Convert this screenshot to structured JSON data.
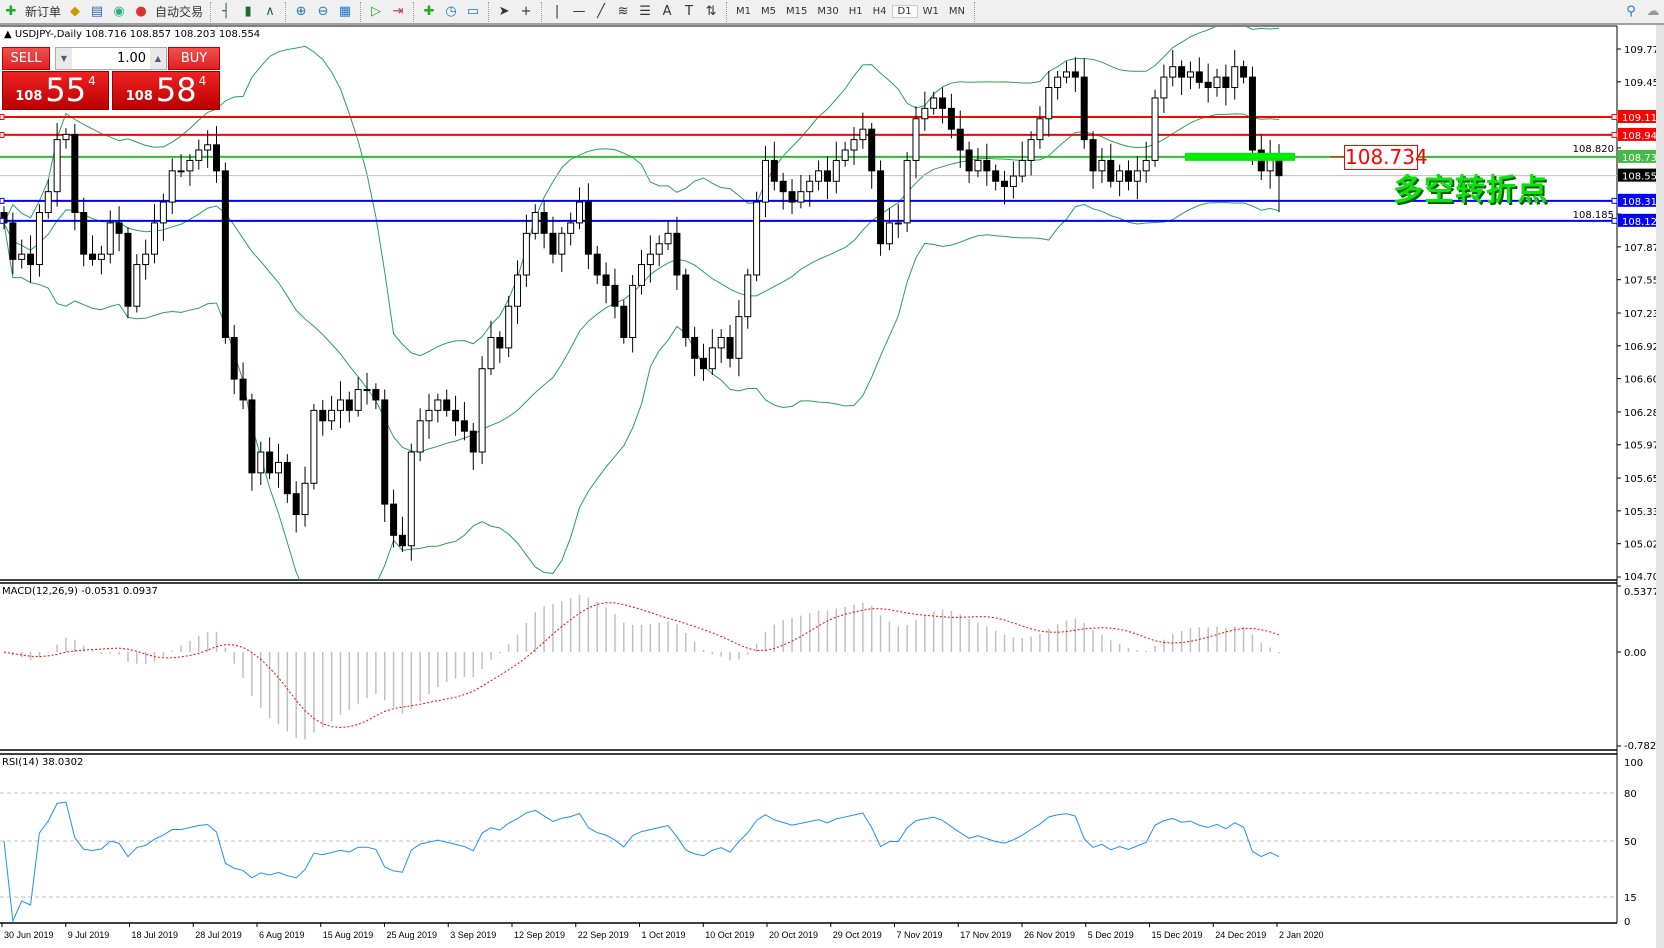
{
  "toolbar": {
    "new_order": "新订单",
    "auto_trading": "自动交易",
    "icons": [
      "new-order-icon",
      "metaquotes-icon",
      "market-watch-icon",
      "signals-icon",
      "auto-trading-icon",
      "bar-chart-icon",
      "candlestick-icon",
      "line-chart-icon",
      "zoom-in-icon",
      "zoom-out-icon",
      "tile-windows-icon",
      "autoscroll-icon",
      "chart-shift-icon",
      "indicators-icon",
      "periods-icon",
      "templates-icon",
      "cursor-icon",
      "crosshair-icon",
      "vertical-line-icon",
      "horizontal-line-icon",
      "trendline-icon",
      "fibonacci-icon",
      "fibo-fan-icon",
      "text-icon",
      "text-label-icon",
      "arrows-icon",
      "search-icon",
      "community-icon"
    ],
    "timeframes": [
      "M1",
      "M5",
      "M15",
      "M30",
      "H1",
      "H4",
      "D1",
      "W1",
      "MN"
    ],
    "active_timeframe": "D1"
  },
  "header": {
    "symbol": "USDJPY-,Daily",
    "ohlc": "108.716 108.857 108.203 108.554"
  },
  "one_click": {
    "sell_label": "SELL",
    "buy_label": "BUY",
    "lot": "1.00",
    "sell_small": "108",
    "sell_big": "55",
    "sell_tiny": "4",
    "buy_small": "108",
    "buy_big": "58",
    "buy_tiny": "4"
  },
  "annotation": {
    "price_tag": "108.734",
    "text": "多空转折点",
    "bar_color": "#00ee00"
  },
  "macd": {
    "label": "MACD(12,26,9) -0.0531 0.0937",
    "axis": [
      "0.5377",
      "0.00",
      "-0.7823"
    ],
    "range": [
      -0.7823,
      0.5377
    ]
  },
  "rsi": {
    "label": "RSI(14) 38.0302",
    "axis": [
      "100",
      "80",
      "50",
      "15",
      "0"
    ],
    "levels": [
      80,
      50,
      15
    ]
  },
  "chart_data": {
    "type": "candlestick",
    "symbol": "USDJPY",
    "timeframe": "Daily",
    "ylim": [
      104.7,
      109.77
    ],
    "price_ticks": [
      "109.770",
      "109.455",
      "108.820",
      "108.185",
      "107.870",
      "107.555",
      "107.235",
      "106.920",
      "106.605",
      "106.285",
      "105.970",
      "105.650",
      "105.335",
      "105.020",
      "104.700"
    ],
    "last_bar": {
      "open": 108.716,
      "high": 108.857,
      "low": 108.203,
      "close": 108.554
    },
    "close": [
      108.1,
      107.75,
      107.8,
      107.7,
      108.2,
      108.4,
      108.9,
      108.95,
      108.2,
      107.8,
      107.75,
      107.8,
      108.1,
      108.0,
      107.3,
      107.7,
      107.8,
      108.1,
      108.3,
      108.6,
      108.6,
      108.7,
      108.8,
      108.85,
      108.6,
      107.0,
      106.6,
      106.4,
      105.7,
      105.9,
      105.7,
      105.8,
      105.5,
      105.3,
      105.6,
      106.3,
      106.2,
      106.3,
      106.4,
      106.3,
      106.5,
      106.5,
      106.4,
      105.4,
      105.1,
      105.0,
      105.9,
      106.2,
      106.3,
      106.4,
      106.3,
      106.2,
      106.1,
      105.9,
      106.7,
      107.0,
      106.9,
      107.3,
      107.6,
      108.0,
      108.2,
      108.0,
      107.8,
      108.0,
      108.1,
      108.3,
      107.8,
      107.6,
      107.5,
      107.3,
      107.0,
      107.5,
      107.7,
      107.8,
      107.9,
      108.0,
      107.6,
      107.0,
      106.8,
      106.7,
      106.9,
      107.0,
      106.8,
      107.2,
      107.6,
      108.3,
      108.7,
      108.5,
      108.4,
      108.3,
      108.4,
      108.5,
      108.6,
      108.5,
      108.7,
      108.8,
      108.9,
      109.0,
      108.6,
      107.9,
      108.1,
      108.1,
      108.7,
      109.1,
      109.2,
      109.3,
      109.2,
      109.0,
      108.8,
      108.6,
      108.7,
      108.6,
      108.5,
      108.45,
      108.55,
      108.7,
      108.9,
      109.1,
      109.4,
      109.5,
      109.55,
      109.5,
      108.9,
      108.6,
      108.7,
      108.5,
      108.6,
      108.5,
      108.6,
      108.7,
      109.3,
      109.5,
      109.6,
      109.5,
      109.55,
      109.45,
      109.4,
      109.5,
      109.4,
      109.6,
      109.5,
      108.8,
      108.6,
      108.716,
      108.554
    ],
    "horizontal_lines": [
      {
        "price": "109.117",
        "color": "#ff0000"
      },
      {
        "price": "108.945",
        "color": "#ff0000"
      },
      {
        "price": "108.734",
        "color": "#33bb33"
      },
      {
        "price": "108.554",
        "color": "#000000",
        "bid": true
      },
      {
        "price": "108.312",
        "color": "#0000ff"
      },
      {
        "price": "108.120",
        "color": "#0000ff"
      }
    ],
    "indicators": [
      "Bollinger Bands(20,2)",
      "MACD(12,26,9)",
      "RSI(14)"
    ],
    "band_color": "#2aa05a",
    "rsi_color": "#1e90ff",
    "signal_color": "#ff0000",
    "date_labels": [
      "30 Jun 2019",
      "9 Jul 2019",
      "18 Jul 2019",
      "28 Jul 2019",
      "6 Aug 2019",
      "15 Aug 2019",
      "25 Aug 2019",
      "3 Sep 2019",
      "12 Sep 2019",
      "22 Sep 2019",
      "1 Oct 2019",
      "10 Oct 2019",
      "20 Oct 2019",
      "29 Oct 2019",
      "7 Nov 2019",
      "17 Nov 2019",
      "26 Nov 2019",
      "5 Dec 2019",
      "15 Dec 2019",
      "24 Dec 2019",
      "2 Jan 2020"
    ]
  }
}
